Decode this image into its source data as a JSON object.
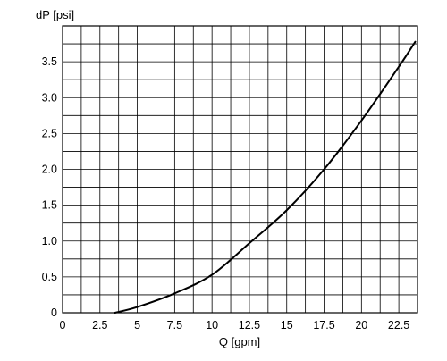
{
  "chart_data": {
    "type": "line",
    "title": "",
    "xlabel": "Q [gpm]",
    "ylabel": "dP [psi]",
    "xlim": [
      0,
      23.75
    ],
    "ylim": [
      0,
      4.0
    ],
    "x_ticks": [
      0,
      2.5,
      5,
      7.5,
      10,
      12.5,
      15,
      17.5,
      20,
      22.5
    ],
    "x_tick_labels": [
      "0",
      "2.5",
      "5",
      "7.5",
      "10",
      "12.5",
      "15",
      "17.5",
      "20",
      "22.5"
    ],
    "y_ticks": [
      0,
      0.5,
      1.0,
      1.5,
      2.0,
      2.5,
      3.0,
      3.5
    ],
    "y_tick_labels": [
      "0",
      "0.5",
      "1.0",
      "1.5",
      "2.0",
      "2.5",
      "3.0",
      "3.5"
    ],
    "grid": true,
    "legend": "none",
    "series": [
      {
        "x": [
          3.5,
          5,
          7.5,
          10,
          12.5,
          15,
          17.5,
          20,
          22.5,
          23.6
        ],
        "y": [
          0.0,
          0.08,
          0.27,
          0.53,
          0.97,
          1.43,
          2.0,
          2.68,
          3.43,
          3.78
        ]
      }
    ]
  },
  "colors": {
    "background": "#ffffff",
    "grid": "#000000",
    "line": "#000000"
  }
}
